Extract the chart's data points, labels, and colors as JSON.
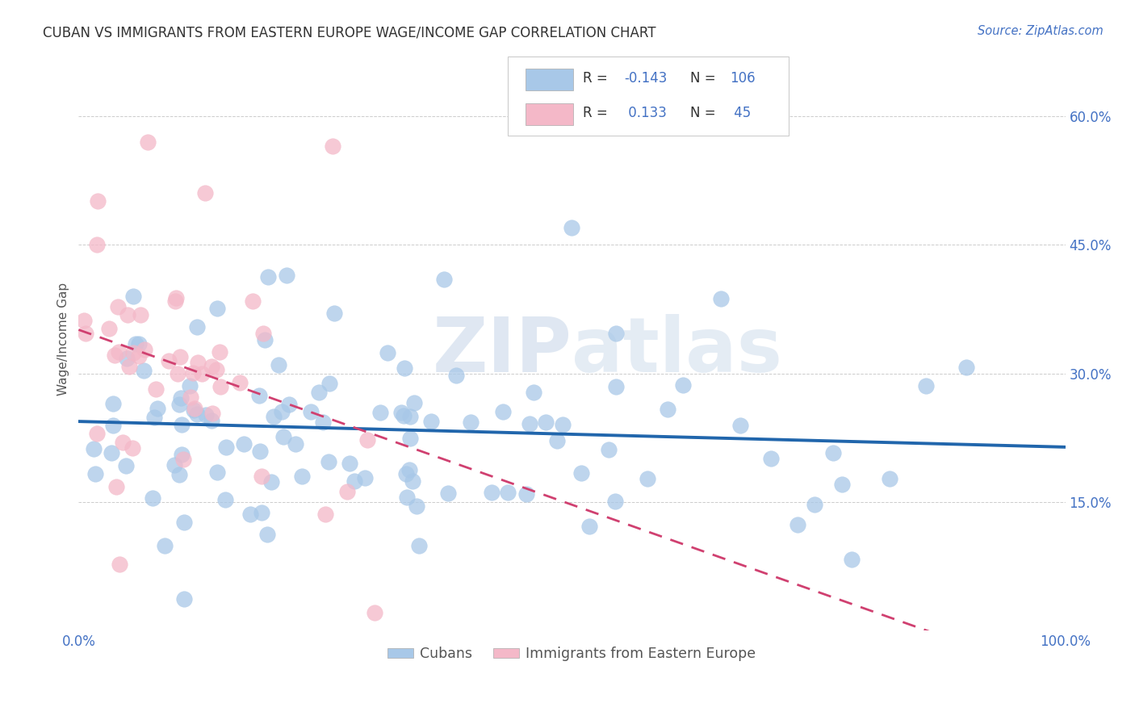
{
  "title": "CUBAN VS IMMIGRANTS FROM EASTERN EUROPE WAGE/INCOME GAP CORRELATION CHART",
  "source": "Source: ZipAtlas.com",
  "ylabel": "Wage/Income Gap",
  "ytick_labels": [
    "15.0%",
    "30.0%",
    "45.0%",
    "60.0%"
  ],
  "ytick_values": [
    0.15,
    0.3,
    0.45,
    0.6
  ],
  "legend_label1": "Cubans",
  "legend_label2": "Immigrants from Eastern Europe",
  "legend_R1": "-0.143",
  "legend_N1": "106",
  "legend_R2": "0.133",
  "legend_N2": "45",
  "color_cubans": "#a8c8e8",
  "color_eastern": "#f4b8c8",
  "color_line_cubans": "#2166ac",
  "color_line_eastern": "#d04070",
  "color_watermark": "#c8d8f0",
  "background_color": "#ffffff",
  "grid_color": "#cccccc",
  "title_color": "#333333",
  "tick_color": "#4472c4",
  "source_color": "#4472c4",
  "xlim": [
    0.0,
    1.0
  ],
  "ylim": [
    0.0,
    0.68
  ],
  "cubans_seed": 7,
  "eastern_seed": 13
}
